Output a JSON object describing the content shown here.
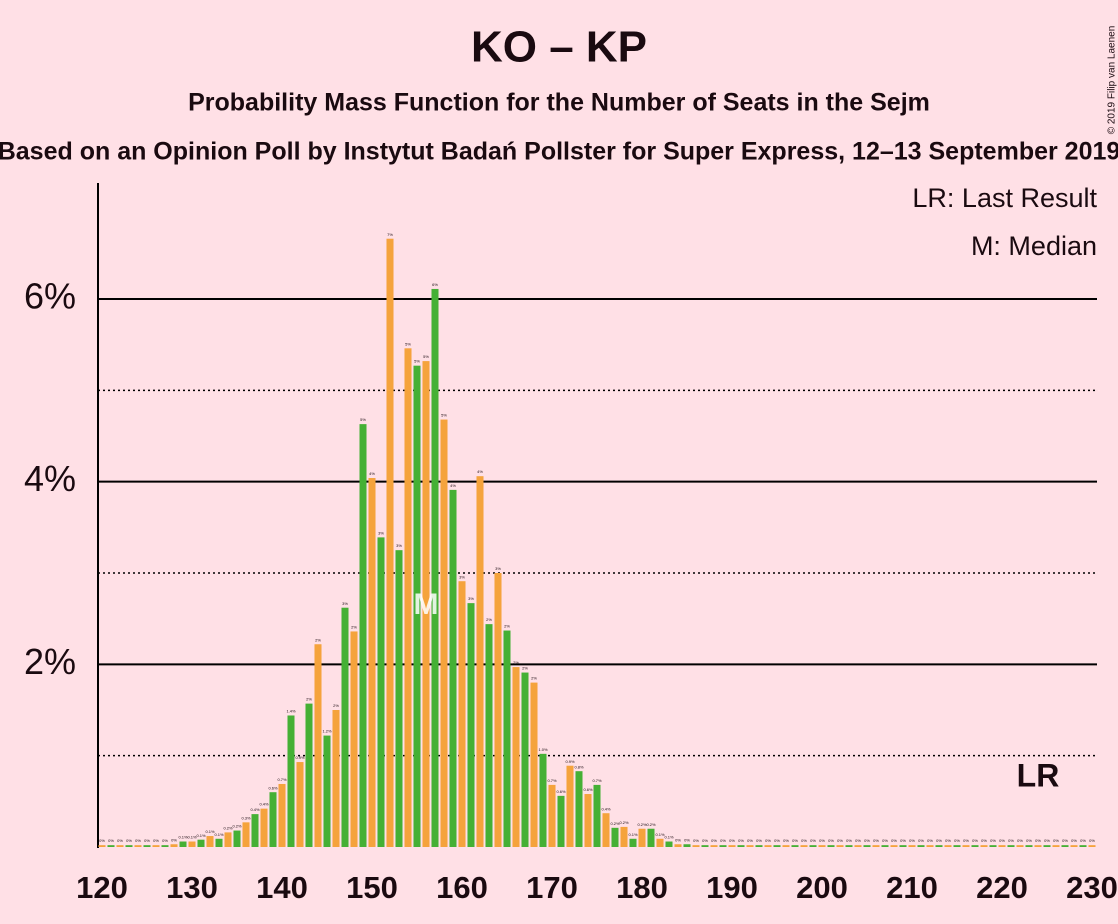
{
  "chart_data": {
    "type": "bar",
    "title": "KO – KP",
    "subtitle": "Probability Mass Function for the Number of Seats in the Sejm",
    "subtitle2": "Based on an Opinion Poll by Instytut Badań Pollster for Super Express, 12–13 September 2019",
    "copyright": "© 2019 Filip van Laenen",
    "legend": [
      "LR: Last Result",
      "M: Median"
    ],
    "median": 156,
    "median_label": "M",
    "last_result": 224,
    "last_result_label": "LR",
    "bar_colors": [
      "#f5a33c",
      "#45b035"
    ],
    "x": [
      120,
      121,
      122,
      123,
      124,
      125,
      126,
      127,
      128,
      129,
      130,
      131,
      132,
      133,
      134,
      135,
      136,
      137,
      138,
      139,
      140,
      141,
      142,
      143,
      144,
      145,
      146,
      147,
      148,
      149,
      150,
      151,
      152,
      153,
      154,
      155,
      156,
      157,
      158,
      159,
      160,
      161,
      162,
      163,
      164,
      165,
      166,
      167,
      168,
      169,
      170,
      171,
      172,
      173,
      174,
      175,
      176,
      177,
      178,
      179,
      180,
      181,
      182,
      183,
      184,
      185,
      186,
      187,
      188,
      189,
      190,
      191,
      192,
      193,
      194,
      195,
      196,
      197,
      198,
      199,
      200,
      201,
      202,
      203,
      204,
      205,
      206,
      207,
      208,
      209,
      210,
      211,
      212,
      213,
      214,
      215,
      216,
      217,
      218,
      219,
      220,
      221,
      222,
      223,
      224,
      225,
      226,
      227,
      228,
      229,
      230
    ],
    "values": [
      0.02,
      0.02,
      0.02,
      0.02,
      0.02,
      0.02,
      0.02,
      0.02,
      0.03,
      0.06,
      0.06,
      0.08,
      0.12,
      0.09,
      0.16,
      0.18,
      0.27,
      0.36,
      0.42,
      0.6,
      0.69,
      1.44,
      0.93,
      1.57,
      2.22,
      1.22,
      1.5,
      2.62,
      2.36,
      4.63,
      4.04,
      3.39,
      6.66,
      3.25,
      5.46,
      5.27,
      5.32,
      6.11,
      4.68,
      3.91,
      2.91,
      2.67,
      4.06,
      2.44,
      3.0,
      2.37,
      1.97,
      1.91,
      1.8,
      1.02,
      0.68,
      0.56,
      0.89,
      0.83,
      0.58,
      0.68,
      0.37,
      0.21,
      0.22,
      0.09,
      0.2,
      0.2,
      0.09,
      0.06,
      0.03,
      0.03,
      0.02,
      0.02,
      0.02,
      0.02,
      0.02,
      0.02,
      0.02,
      0.02,
      0.02,
      0.02,
      0.02,
      0.02,
      0.02,
      0.02,
      0.02,
      0.02,
      0.02,
      0.02,
      0.02,
      0.02,
      0.02,
      0.02,
      0.02,
      0.02,
      0.02,
      0.02,
      0.02,
      0.02,
      0.02,
      0.02,
      0.02,
      0.02,
      0.02,
      0.02,
      0.02,
      0.02,
      0.02,
      0.02,
      0.02,
      0.02,
      0.02,
      0.02,
      0.02,
      0.02,
      0.02
    ],
    "value_labels": [
      "0%",
      "0%",
      "0%",
      "0%",
      "0%",
      "0%",
      "0%",
      "0%",
      "0%",
      "0.1%",
      "0.1%",
      "0.1%",
      "0.1%",
      "0.1%",
      "0.2%",
      "0.2%",
      "0.3%",
      "0.4%",
      "0.4%",
      "0.6%",
      "0.7%",
      "1.4%",
      "0.9%",
      "2%",
      "2%",
      "1.2%",
      "2%",
      "3%",
      "2%",
      "5%",
      "4%",
      "3%",
      "7%",
      "3%",
      "5%",
      "5%",
      "5%",
      "6%",
      "5%",
      "4%",
      "3%",
      "3%",
      "4%",
      "2%",
      "3%",
      "2%",
      "2%",
      "2%",
      "2%",
      "1.0%",
      "0.7%",
      "0.6%",
      "0.9%",
      "0.8%",
      "0.6%",
      "0.7%",
      "0.4%",
      "0.2%",
      "0.2%",
      "0.1%",
      "0.2%",
      "0.2%",
      "0.1%",
      "0.1%",
      "0%",
      "0%",
      "0%",
      "0%",
      "0%",
      "0%",
      "0%",
      "0%",
      "0%",
      "0%",
      "0%",
      "0%",
      "0%",
      "0%",
      "0%",
      "0%",
      "0%",
      "0%",
      "0%",
      "0%",
      "0%",
      "0%",
      "0%",
      "0%",
      "0%",
      "0%",
      "0%",
      "0%",
      "0%",
      "0%",
      "0%",
      "0%",
      "0%",
      "0%",
      "0%",
      "0%",
      "0%",
      "0%",
      "0%",
      "0%",
      "0%",
      "0%",
      "0%",
      "0%",
      "0%",
      "0%",
      "0%"
    ],
    "xlim": [
      120,
      230
    ],
    "xticks": [
      120,
      130,
      140,
      150,
      160,
      170,
      180,
      190,
      200,
      210,
      220,
      230
    ],
    "ylim": [
      0,
      7.27
    ],
    "yticks": [
      {
        "value": 2,
        "label": "2%"
      },
      {
        "value": 4,
        "label": "4%"
      },
      {
        "value": 6,
        "label": "6%"
      }
    ],
    "minor_yticks": [
      1,
      3,
      5
    ],
    "grid": true
  }
}
